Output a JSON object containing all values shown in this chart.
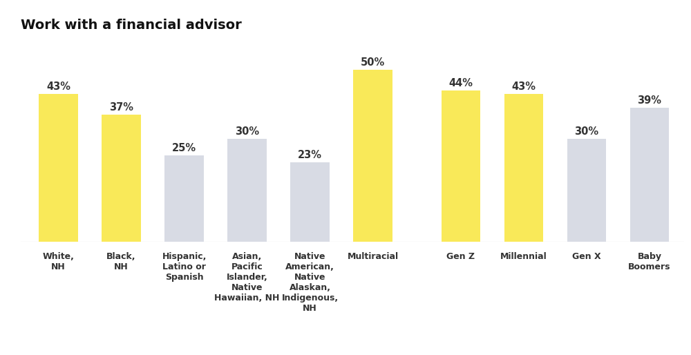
{
  "title": "Work with a financial advisor",
  "categories": [
    "White,\nNH",
    "Black,\nNH",
    "Hispanic,\nLatino or\nSpanish",
    "Asian,\nPacific\nIslander,\nNative\nHawaiian, NH",
    "Native\nAmerican,\nNative\nAlaskan,\nIndigenous,\nNH",
    "Multiracial",
    "Gen Z",
    "Millennial",
    "Gen X",
    "Baby\nBoomers"
  ],
  "values": [
    43,
    37,
    25,
    30,
    23,
    50,
    44,
    43,
    30,
    39
  ],
  "bar_colors": [
    "#F9E959",
    "#F9E959",
    "#D8DBE4",
    "#D8DBE4",
    "#D8DBE4",
    "#F9E959",
    "#F9E959",
    "#F9E959",
    "#D8DBE4",
    "#D8DBE4"
  ],
  "ylim": [
    0,
    58
  ],
  "background_color": "#FFFFFF",
  "title_fontsize": 14,
  "bar_label_fontsize": 10.5,
  "tick_label_fontsize": 9,
  "bold_indices": [
    0,
    1,
    5,
    6,
    7
  ],
  "bar_width": 0.62
}
